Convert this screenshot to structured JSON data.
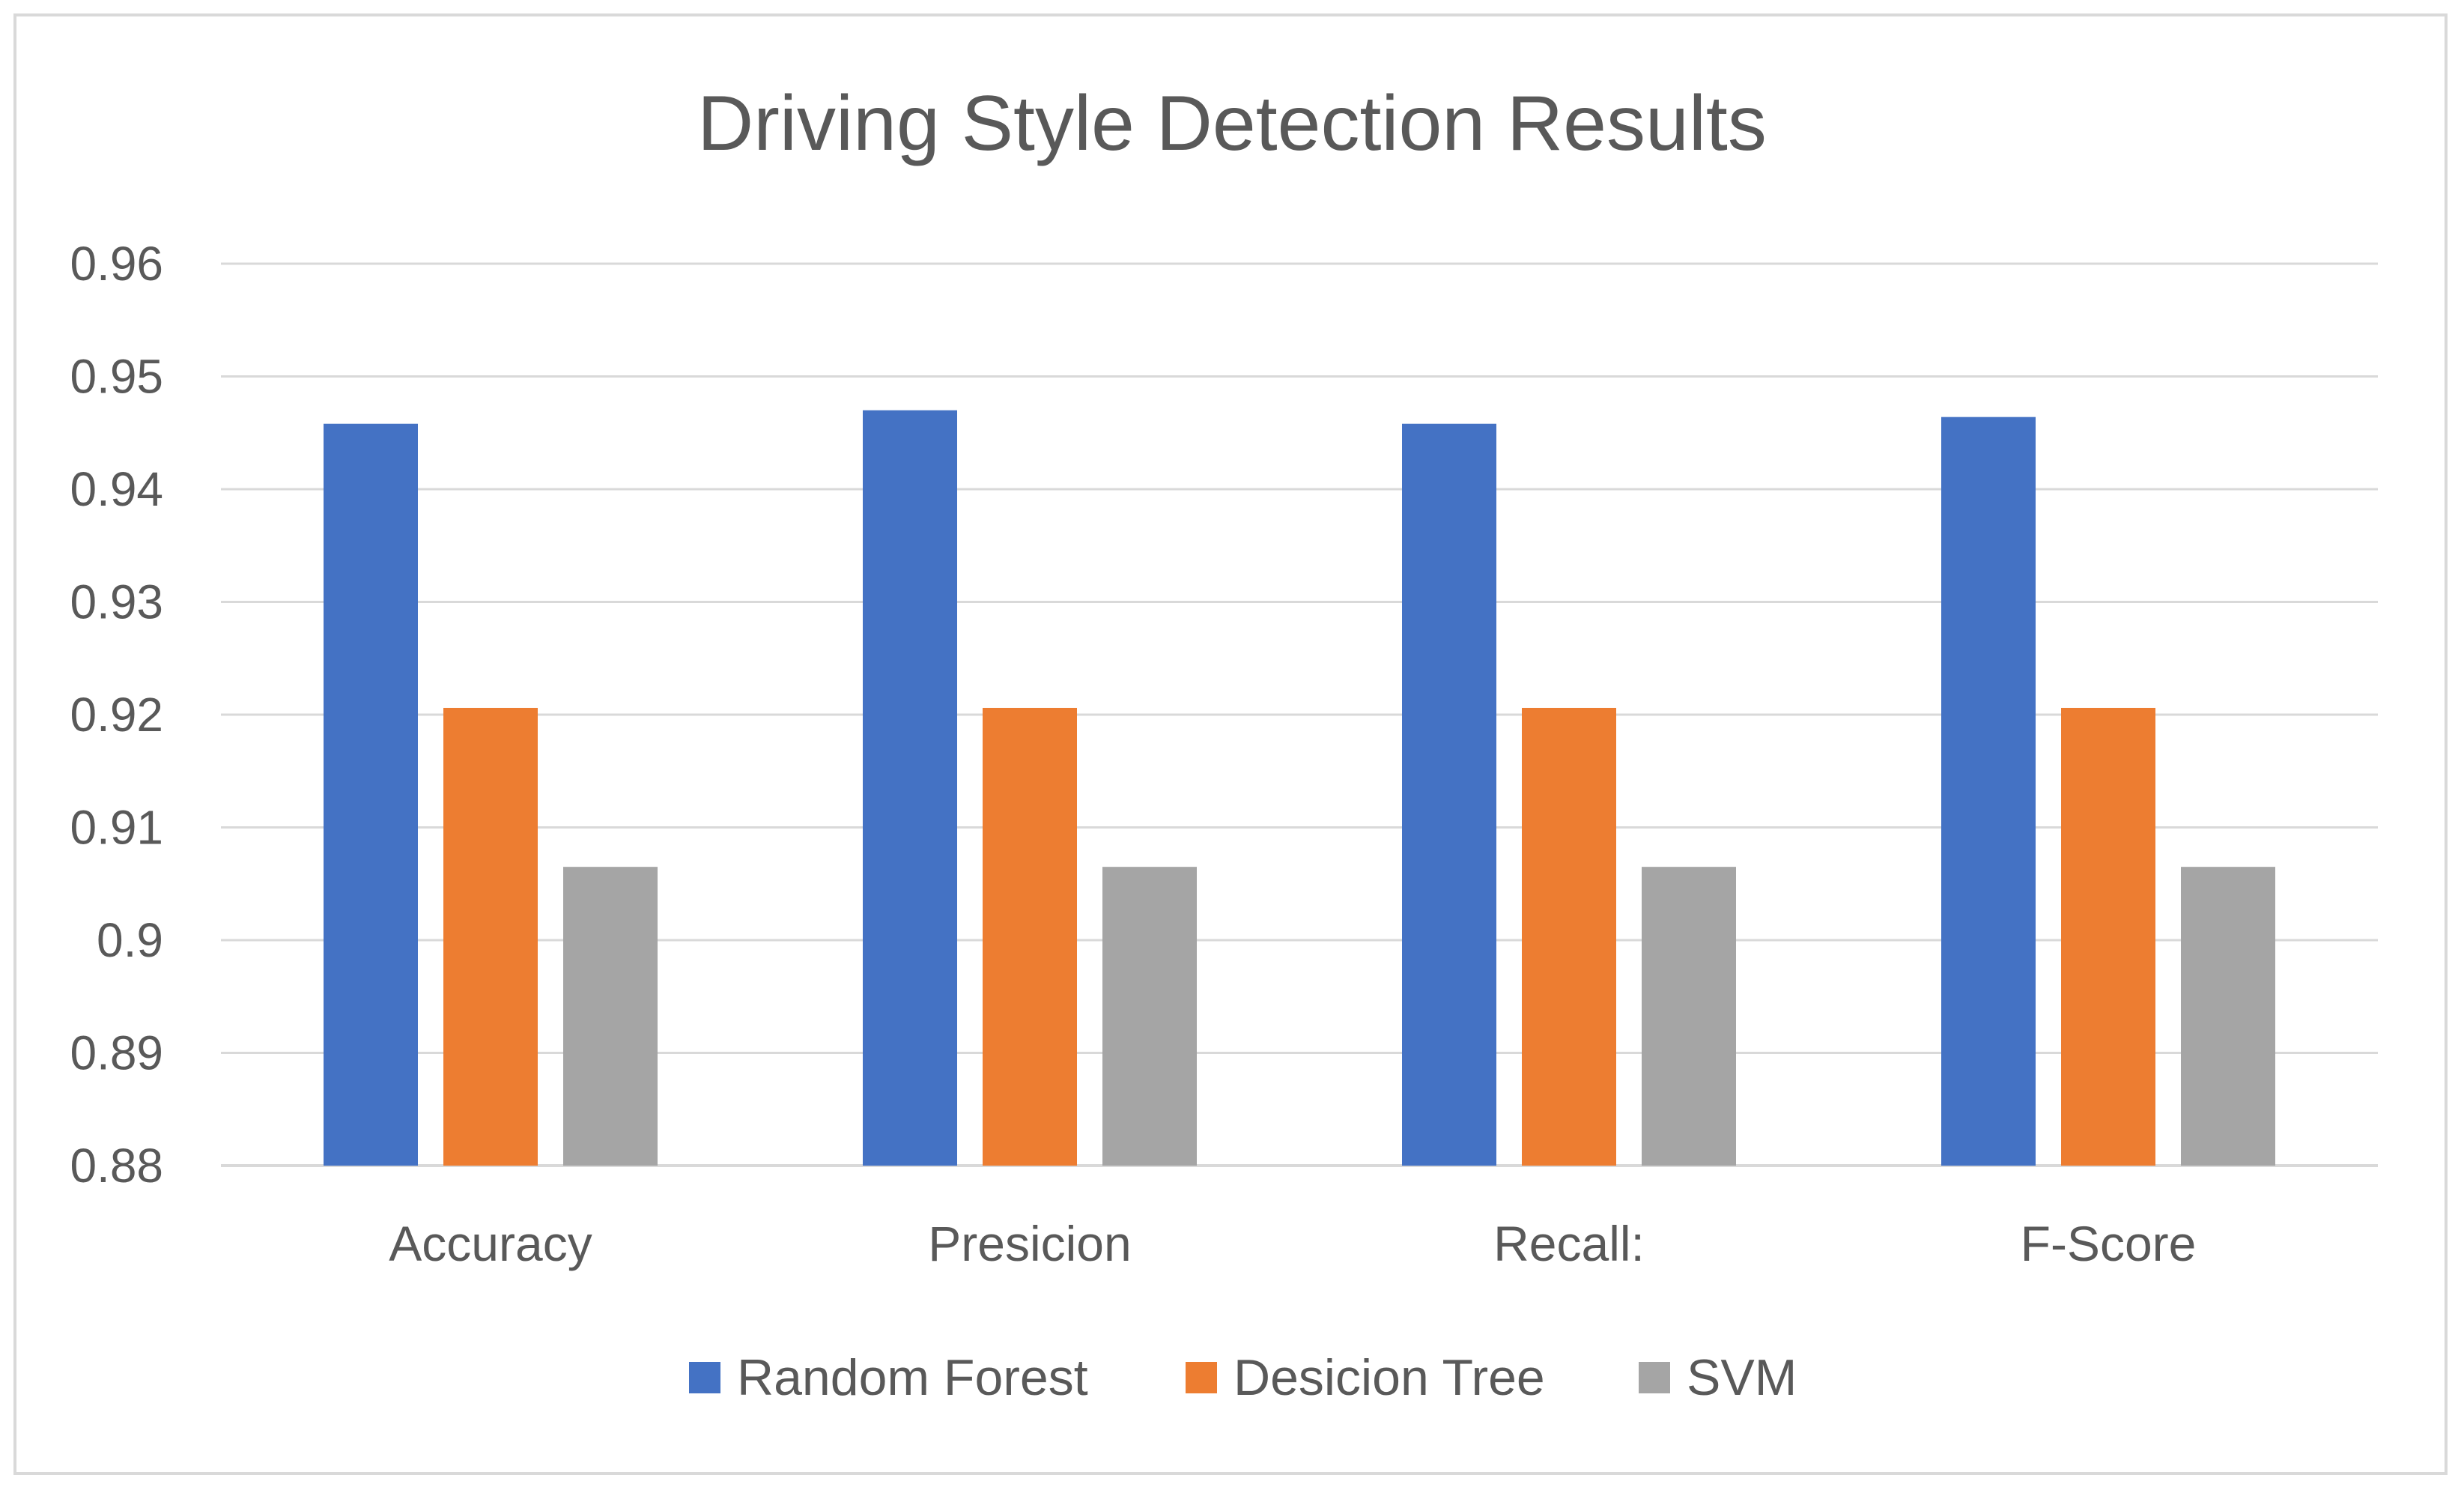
{
  "chart_data": {
    "type": "bar",
    "title": "Driving Style Detection Results",
    "categories": [
      "Accuracy",
      "Presicion",
      "Recall:",
      "F-Score"
    ],
    "series": [
      {
        "name": "Random Forest",
        "color": "#4472c4",
        "values": [
          0.9458,
          0.947,
          0.9458,
          0.9464
        ]
      },
      {
        "name": "Desicion Tree",
        "color": "#ed7d31",
        "values": [
          0.9206,
          0.9206,
          0.9206,
          0.9206
        ]
      },
      {
        "name": "SVM",
        "color": "#a5a5a5",
        "values": [
          0.9065,
          0.9065,
          0.9065,
          0.9065
        ]
      }
    ],
    "ylim": [
      0.88,
      0.96
    ],
    "yticks": [
      "0.88",
      "0.89",
      "0.9",
      "0.91",
      "0.92",
      "0.93",
      "0.94",
      "0.95",
      "0.96"
    ],
    "xlabel": "",
    "ylabel": "",
    "grid": true,
    "legend_position": "bottom"
  }
}
